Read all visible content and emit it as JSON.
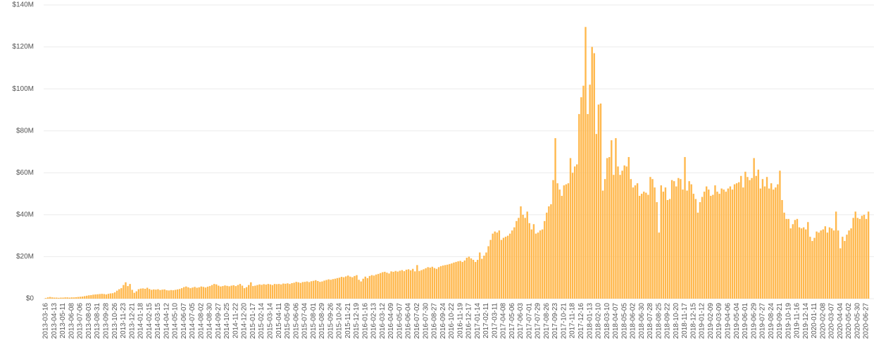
{
  "chart_data": {
    "type": "bar",
    "color": "#ffb84d",
    "grid": true,
    "ylim": [
      0,
      140
    ],
    "yticks": [
      {
        "value": 0,
        "label": "$0"
      },
      {
        "value": 20,
        "label": "$20M"
      },
      {
        "value": 40,
        "label": "$40M"
      },
      {
        "value": 60,
        "label": "$60M"
      },
      {
        "value": 80,
        "label": "$80M"
      },
      {
        "value": 100,
        "label": "$100M"
      },
      {
        "value": 120,
        "label": "$120M"
      },
      {
        "value": 140,
        "label": "$140M"
      }
    ],
    "categories": [
      "2013-03-16",
      null,
      null,
      null,
      "2013-04-13",
      null,
      null,
      null,
      "2013-05-11",
      null,
      null,
      null,
      "2013-06-08",
      null,
      null,
      null,
      "2013-07-06",
      null,
      null,
      null,
      "2013-08-03",
      null,
      null,
      null,
      "2013-08-31",
      null,
      null,
      null,
      "2013-09-28",
      null,
      null,
      null,
      "2013-10-26",
      null,
      null,
      null,
      "2013-11-23",
      null,
      null,
      null,
      "2013-12-21",
      null,
      null,
      null,
      "2014-01-18",
      null,
      null,
      null,
      "2014-02-15",
      null,
      null,
      null,
      "2014-03-15",
      null,
      null,
      null,
      "2014-04-12",
      null,
      null,
      null,
      "2014-05-10",
      null,
      null,
      null,
      "2014-06-07",
      null,
      null,
      null,
      "2014-07-05",
      null,
      null,
      null,
      "2014-08-02",
      null,
      null,
      null,
      "2014-08-30",
      null,
      null,
      null,
      "2014-09-27",
      null,
      null,
      null,
      "2014-10-25",
      null,
      null,
      null,
      "2014-11-22",
      null,
      null,
      null,
      "2014-12-20",
      null,
      null,
      null,
      "2015-01-17",
      null,
      null,
      null,
      "2015-02-14",
      null,
      null,
      null,
      "2015-03-14",
      null,
      null,
      null,
      "2015-04-11",
      null,
      null,
      null,
      "2015-05-09",
      null,
      null,
      null,
      "2015-06-06",
      null,
      null,
      null,
      "2015-07-04",
      null,
      null,
      null,
      "2015-08-01",
      null,
      null,
      null,
      "2015-08-29",
      null,
      null,
      null,
      "2015-09-26",
      null,
      null,
      null,
      "2015-10-24",
      null,
      null,
      null,
      "2015-11-21",
      null,
      null,
      null,
      "2015-12-19",
      null,
      null,
      null,
      "2016-01-16",
      null,
      null,
      null,
      "2016-02-13",
      null,
      null,
      null,
      "2016-03-12",
      null,
      null,
      null,
      "2016-04-09",
      null,
      null,
      null,
      "2016-05-07",
      null,
      null,
      null,
      "2016-06-04",
      null,
      null,
      null,
      "2016-07-02",
      null,
      null,
      null,
      "2016-07-30",
      null,
      null,
      null,
      "2016-08-27",
      null,
      null,
      null,
      "2016-09-24",
      null,
      null,
      null,
      "2016-10-22",
      null,
      null,
      null,
      "2016-11-19",
      null,
      null,
      null,
      "2016-12-17",
      null,
      null,
      null,
      "2017-01-14",
      null,
      null,
      null,
      "2017-02-11",
      null,
      null,
      null,
      "2017-03-11",
      null,
      null,
      null,
      "2017-04-08",
      null,
      null,
      null,
      "2017-05-06",
      null,
      null,
      null,
      "2017-06-03",
      null,
      null,
      null,
      "2017-07-01",
      null,
      null,
      null,
      "2017-07-29",
      null,
      null,
      null,
      "2017-08-26",
      null,
      null,
      null,
      "2017-09-23",
      null,
      null,
      null,
      "2017-10-21",
      null,
      null,
      null,
      "2017-11-18",
      null,
      null,
      null,
      "2017-12-16",
      null,
      null,
      null,
      "2018-01-13",
      null,
      null,
      null,
      "2018-02-10",
      null,
      null,
      null,
      "2018-03-10",
      null,
      null,
      null,
      "2018-04-07",
      null,
      null,
      null,
      "2018-05-05",
      null,
      null,
      null,
      "2018-06-02",
      null,
      null,
      null,
      "2018-06-30",
      null,
      null,
      null,
      "2018-07-28",
      null,
      null,
      null,
      "2018-08-25",
      null,
      null,
      null,
      "2018-09-22",
      null,
      null,
      null,
      "2018-10-20",
      null,
      null,
      null,
      "2018-11-17",
      null,
      null,
      null,
      "2018-12-15",
      null,
      null,
      null,
      "2019-01-12",
      null,
      null,
      null,
      "2019-02-09",
      null,
      null,
      null,
      "2019-03-09",
      null,
      null,
      null,
      "2019-04-06",
      null,
      null,
      null,
      "2019-05-04",
      null,
      null,
      null,
      "2019-06-01",
      null,
      null,
      null,
      "2019-06-29",
      null,
      null,
      null,
      "2019-07-27",
      null,
      null,
      null,
      "2019-08-24",
      null,
      null,
      null,
      "2019-09-21",
      null,
      null,
      null,
      "2019-10-19",
      null,
      null,
      null,
      "2019-11-16",
      null,
      null,
      null,
      "2019-12-14",
      null,
      null,
      null,
      "2020-01-11",
      null,
      null,
      null,
      "2020-02-08",
      null,
      null,
      null,
      "2020-03-07",
      null,
      null,
      null,
      "2020-04-04",
      null,
      null,
      null,
      "2020-05-02",
      null,
      null,
      null,
      "2020-05-30",
      null,
      null,
      null,
      "2020-06-27",
      null
    ],
    "values": [
      0.3,
      0.6,
      0.8,
      0.6,
      0.5,
      0.5,
      0.4,
      0.5,
      0.5,
      0.6,
      0.6,
      0.5,
      0.6,
      0.6,
      0.7,
      0.8,
      0.9,
      1.0,
      1.2,
      1.4,
      1.6,
      1.7,
      1.9,
      2.0,
      2.1,
      2.2,
      2.3,
      2.2,
      2.0,
      2.3,
      2.5,
      2.6,
      3.0,
      3.8,
      4.5,
      5.0,
      6.5,
      7.8,
      6.0,
      7.0,
      4.2,
      2.8,
      3.5,
      4.5,
      4.8,
      4.9,
      4.7,
      5.2,
      4.6,
      4.2,
      4.4,
      4.3,
      4.5,
      4.1,
      4.3,
      4.4,
      4.0,
      3.9,
      4.1,
      4.0,
      4.2,
      4.4,
      4.6,
      5.0,
      5.5,
      5.8,
      5.4,
      5.0,
      5.3,
      5.6,
      5.2,
      5.4,
      5.8,
      5.6,
      5.3,
      5.7,
      6.0,
      6.5,
      7.0,
      6.8,
      6.2,
      5.8,
      6.0,
      6.3,
      6.1,
      5.9,
      6.2,
      6.4,
      6.0,
      6.5,
      7.0,
      6.2,
      5.0,
      5.5,
      6.5,
      7.8,
      6.0,
      6.2,
      6.5,
      6.8,
      6.6,
      6.9,
      6.7,
      7.0,
      6.8,
      6.5,
      7.0,
      6.9,
      7.0,
      6.8,
      7.2,
      7.1,
      7.3,
      7.0,
      7.4,
      7.6,
      8.0,
      7.8,
      7.5,
      7.9,
      8.0,
      8.2,
      7.9,
      8.3,
      8.5,
      8.8,
      8.4,
      8.0,
      8.2,
      8.6,
      8.9,
      9.2,
      9.0,
      9.3,
      9.5,
      9.8,
      10.0,
      10.4,
      10.2,
      10.6,
      11.0,
      10.5,
      10.2,
      10.8,
      11.2,
      9.0,
      8.2,
      9.5,
      10.5,
      9.8,
      10.8,
      11.2,
      11.0,
      11.5,
      11.8,
      12.2,
      12.6,
      12.8,
      12.4,
      12.0,
      13.0,
      12.8,
      13.2,
      12.9,
      13.3,
      13.6,
      13.1,
      13.8,
      14.0,
      13.5,
      14.2,
      13.0,
      16.0,
      13.2,
      13.6,
      14.0,
      14.5,
      15.0,
      14.8,
      15.2,
      14.6,
      14.2,
      15.0,
      15.5,
      15.8,
      16.0,
      16.2,
      16.5,
      16.8,
      17.2,
      17.5,
      17.8,
      18.0,
      17.5,
      18.2,
      19.5,
      20.0,
      19.2,
      18.5,
      17.5,
      18.5,
      22.0,
      19.0,
      20.5,
      22.0,
      25.0,
      28.0,
      31.0,
      32.0,
      31.5,
      32.5,
      28.0,
      29.0,
      29.5,
      30.0,
      31.0,
      32.5,
      34.0,
      37.0,
      38.5,
      44.0,
      40.0,
      38.5,
      41.5,
      36.0,
      33.0,
      35.5,
      31.0,
      31.5,
      32.5,
      33.0,
      37.0,
      41.0,
      44.0,
      45.0,
      56.5,
      76.5,
      55.0,
      52.0,
      49.0,
      54.0,
      54.5,
      55.0,
      67.0,
      60.0,
      63.0,
      64.0,
      88.0,
      96.0,
      101.5,
      129.5,
      88.0,
      102.0,
      120.0,
      117.0,
      78.5,
      92.5,
      93.0,
      51.5,
      57.0,
      67.0,
      67.5,
      75.5,
      59.0,
      76.5,
      63.0,
      59.0,
      61.0,
      63.5,
      63.0,
      67.5,
      57.0,
      53.0,
      54.0,
      55.0,
      49.0,
      50.0,
      51.0,
      50.5,
      49.5,
      58.0,
      57.0,
      53.0,
      46.0,
      31.5,
      54.0,
      51.0,
      53.0,
      47.0,
      47.5,
      56.5,
      56.0,
      53.5,
      57.5,
      57.0,
      52.0,
      67.5,
      51.5,
      56.0,
      54.5,
      50.0,
      47.5,
      41.0,
      46.0,
      48.5,
      51.0,
      53.5,
      52.0,
      49.0,
      49.5,
      54.0,
      51.0,
      50.0,
      52.5,
      52.0,
      51.0,
      52.5,
      53.5,
      52.0,
      54.5,
      55.0,
      55.5,
      58.5,
      53.0,
      60.5,
      58.0,
      56.5,
      57.5,
      67.0,
      58.5,
      61.5,
      52.5,
      57.0,
      53.5,
      58.0,
      52.5,
      55.0,
      52.0,
      53.0,
      54.5,
      61.0,
      47.0,
      41.0,
      38.0,
      38.0,
      33.5,
      35.5,
      37.5,
      38.0,
      34.0,
      33.5,
      34.0,
      33.0,
      36.5,
      29.5,
      27.5,
      29.0,
      32.0,
      31.5,
      32.5,
      33.0,
      34.5,
      31.5,
      34.0,
      33.5,
      32.5,
      41.5,
      32.5,
      24.0,
      29.5,
      27.5,
      30.5,
      32.5,
      33.5,
      38.5,
      41.5,
      38.5,
      38.0,
      39.5,
      40.0,
      38.0,
      41.5
    ]
  }
}
